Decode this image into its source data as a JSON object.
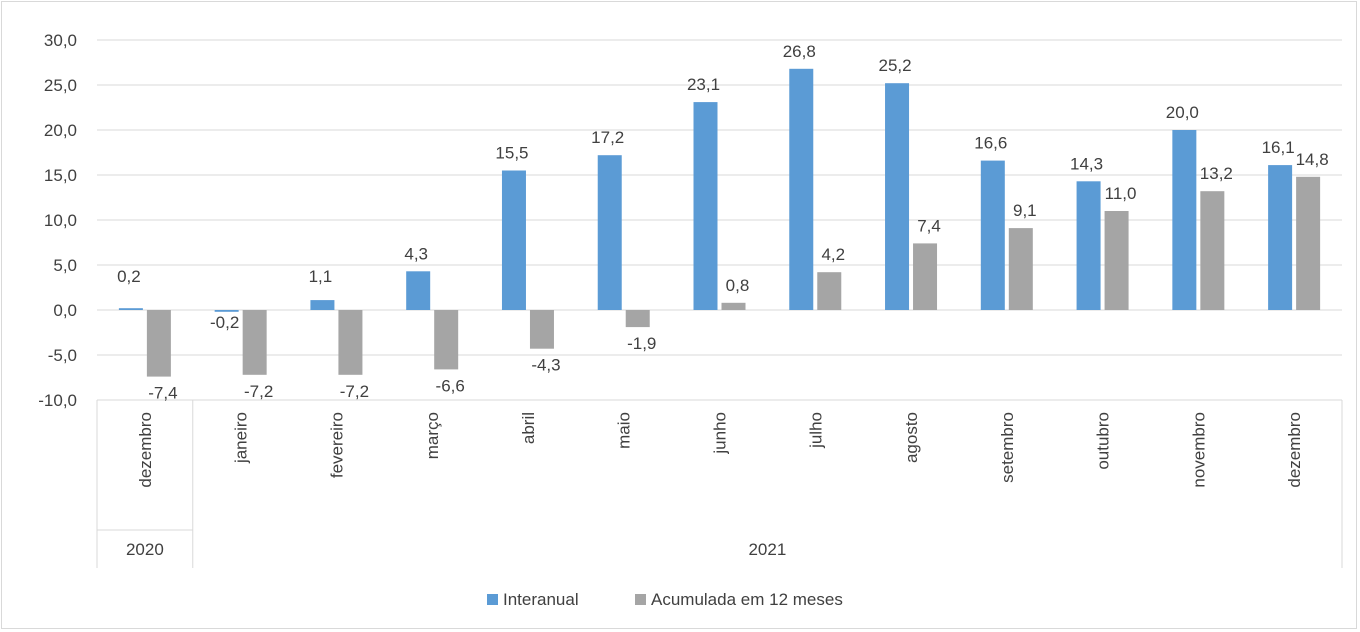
{
  "chart_data": {
    "type": "bar",
    "groups": [
      {
        "label": "2020",
        "count": 1
      },
      {
        "label": "2021",
        "count": 12
      }
    ],
    "categories": [
      "dezembro",
      "janeiro",
      "fevereiro",
      "março",
      "abril",
      "maio",
      "junho",
      "julho",
      "agosto",
      "setembro",
      "outubro",
      "novembro",
      "dezembro"
    ],
    "series": [
      {
        "name": "Interanual",
        "color": "#5b9bd5",
        "values": [
          0.2,
          -0.2,
          1.1,
          4.3,
          15.5,
          17.2,
          23.1,
          26.8,
          25.2,
          16.6,
          14.3,
          20.0,
          16.1
        ],
        "labels": [
          "0,2",
          "-0,2",
          "1,1",
          "4,3",
          "15,5",
          "17,2",
          "23,1",
          "26,8",
          "25,2",
          "16,6",
          "14,3",
          "20,0",
          "16,1"
        ]
      },
      {
        "name": "Acumulada em 12 meses",
        "color": "#a5a5a5",
        "values": [
          -7.4,
          -7.2,
          -7.2,
          -6.6,
          -4.3,
          -1.9,
          0.8,
          4.2,
          7.4,
          9.1,
          11.0,
          13.2,
          14.8
        ],
        "labels": [
          "-7,4",
          "-7,2",
          "-7,2",
          "-6,6",
          "-4,3",
          "-1,9",
          "0,8",
          "4,2",
          "7,4",
          "9,1",
          "11,0",
          "13,2",
          "14,8"
        ]
      }
    ],
    "ylim": [
      -10,
      30
    ],
    "yticks": [
      -10,
      -5,
      0,
      5,
      10,
      15,
      20,
      25,
      30
    ],
    "ytick_labels": [
      "-10,0",
      "-5,0",
      "0,0",
      "5,0",
      "10,0",
      "15,0",
      "20,0",
      "25,0",
      "30,0"
    ],
    "grid": true,
    "legend": "bottom"
  }
}
